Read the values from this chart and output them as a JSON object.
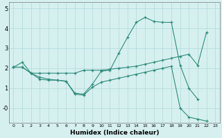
{
  "xlabel": "Humidex (Indice chaleur)",
  "background_color": "#d6f0f0",
  "grid_color": "#b0d8d8",
  "line_color": "#2e8b7a",
  "xlim": [
    -0.5,
    23.5
  ],
  "ylim": [
    -0.75,
    5.3
  ],
  "xticks": [
    0,
    1,
    2,
    3,
    4,
    5,
    6,
    7,
    8,
    9,
    10,
    11,
    12,
    13,
    14,
    15,
    16,
    17,
    18,
    19,
    20,
    21,
    22,
    23
  ],
  "yticks": [
    0,
    1,
    2,
    3,
    4,
    5
  ],
  "ytick_labels": [
    "-0",
    "1",
    "2",
    "3",
    "4",
    "5"
  ],
  "line1_x": [
    0,
    1,
    2,
    3,
    4,
    5,
    6,
    7,
    8,
    9,
    10,
    11,
    12,
    13,
    14,
    15,
    16,
    17,
    18,
    19,
    20,
    21
  ],
  "line1_y": [
    2.05,
    2.3,
    1.75,
    1.45,
    1.4,
    1.4,
    1.35,
    0.75,
    0.7,
    1.2,
    1.85,
    1.9,
    2.75,
    3.55,
    4.3,
    4.55,
    4.35,
    4.3,
    4.3,
    2.15,
    1.0,
    0.45
  ],
  "line2_x": [
    0,
    1,
    2,
    3,
    4,
    5,
    6,
    7,
    8,
    9,
    10,
    11,
    12,
    13,
    14,
    15,
    16,
    17,
    18,
    19,
    20,
    21,
    22
  ],
  "line2_y": [
    2.05,
    2.05,
    1.75,
    1.75,
    1.75,
    1.75,
    1.75,
    1.75,
    1.9,
    1.9,
    1.9,
    1.95,
    2.0,
    2.05,
    2.1,
    2.2,
    2.3,
    2.4,
    2.5,
    2.6,
    2.7,
    2.15,
    3.8
  ],
  "line3_x": [
    0,
    1,
    2,
    3,
    4,
    5,
    6,
    7,
    8,
    9,
    10,
    11,
    12,
    13,
    14,
    15,
    16,
    17,
    18,
    19,
    20,
    21,
    22
  ],
  "line3_y": [
    2.05,
    2.05,
    1.75,
    1.55,
    1.45,
    1.4,
    1.35,
    0.7,
    0.65,
    1.05,
    1.3,
    1.4,
    1.5,
    1.6,
    1.7,
    1.8,
    1.9,
    2.0,
    2.1,
    0.0,
    -0.45,
    -0.55,
    -0.65
  ]
}
